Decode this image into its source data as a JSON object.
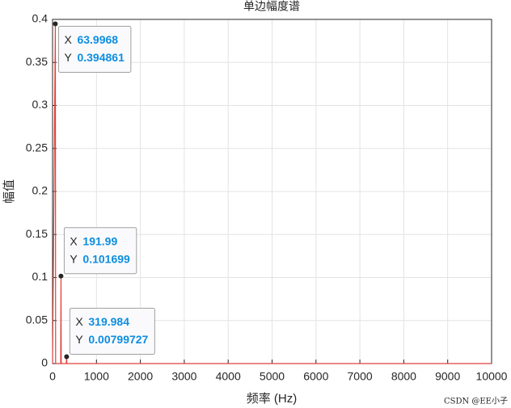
{
  "chart_data": {
    "type": "line",
    "title": "单边幅度谱",
    "x_label": "频率 (Hz)",
    "y_label": "幅值",
    "x": [
      0,
      63.9968,
      70,
      185,
      191.99,
      198,
      313,
      319.984,
      326,
      10000
    ],
    "series": [
      {
        "color": "#e0403a",
        "values": [
          0,
          0.394861,
          0,
          0,
          0.101699,
          0,
          0,
          0.00799727,
          0,
          0
        ]
      }
    ],
    "xlim": [
      0,
      10000
    ],
    "xticks": [
      0,
      1000,
      2000,
      3000,
      4000,
      5000,
      6000,
      7000,
      8000,
      9000,
      10000
    ],
    "ylim": [
      0,
      0.4
    ],
    "yticks": [
      0,
      0.05,
      0.1,
      0.15,
      0.2,
      0.25,
      0.3,
      0.35,
      0.4
    ],
    "grid": true,
    "datatip_x_label": "X",
    "datatip_y_label": "Y",
    "datatips": [
      {
        "x": 63.9968,
        "y": 0.394861
      },
      {
        "x": 191.99,
        "y": 0.101699
      },
      {
        "x": 319.984,
        "y": 0.00799727
      }
    ],
    "watermark": "CSDN @EE小子"
  }
}
